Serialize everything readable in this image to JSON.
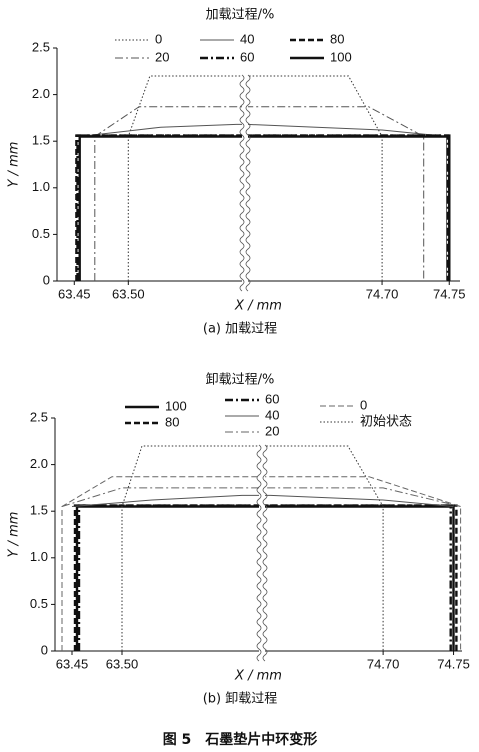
{
  "chart_data": [
    {
      "type": "line",
      "legend_title": "加载过程/%",
      "x_label": "X / mm",
      "y_label": "Y / mm",
      "caption": "(a)  加载过程",
      "xlim": [
        63.434,
        74.758
      ],
      "xbreak": [
        63.608,
        74.598
      ],
      "ylim": [
        0,
        2.5
      ],
      "xticks": [
        63.45,
        {
          "value": 63.5,
          "label": "63.50"
        },
        {
          "value": 74.7,
          "label": "74.70"
        },
        74.75
      ],
      "yticks": [
        0,
        0.5,
        {
          "value": 1,
          "label": "1.0"
        },
        1.5,
        {
          "value": 2,
          "label": "2.0"
        },
        2.5
      ],
      "series": [
        {
          "name": "0",
          "color": "#333333",
          "dash": "dotted",
          "weight": "normal",
          "x": [
            63.5,
            63.5,
            63.52,
            74.675,
            74.7,
            74.7
          ],
          "values": [
            0,
            1.55,
            2.2,
            2.2,
            1.55,
            0
          ]
        },
        {
          "name": "20",
          "color": "#555555",
          "dash": "dashdot",
          "weight": "normal",
          "x": [
            63.469,
            63.469,
            63.51,
            74.69,
            74.731,
            74.731
          ],
          "values": [
            0,
            1.55,
            1.87,
            1.87,
            1.55,
            0
          ]
        },
        {
          "name": "40",
          "color": "#555555",
          "dash": "solid",
          "weight": "normal",
          "x": [
            63.455,
            63.455,
            63.53,
            63.6,
            74.6,
            74.7,
            74.748,
            74.748
          ],
          "values": [
            0,
            1.55,
            1.65,
            1.68,
            1.68,
            1.62,
            1.55,
            0
          ]
        },
        {
          "name": "60",
          "color": "#111111",
          "dash": "dashdot",
          "weight": "bold",
          "x": [
            63.453,
            63.453,
            74.749,
            74.749
          ],
          "values": [
            0,
            1.56,
            1.56,
            0
          ]
        },
        {
          "name": "80",
          "color": "#111111",
          "dash": "dashed",
          "weight": "bold",
          "x": [
            63.452,
            63.452,
            74.75,
            74.75
          ],
          "values": [
            0,
            1.56,
            1.56,
            0
          ]
        },
        {
          "name": "100",
          "color": "#111111",
          "dash": "solid",
          "weight": "bold",
          "x": [
            63.455,
            63.455,
            74.75,
            74.75
          ],
          "values": [
            0,
            1.55,
            1.55,
            0
          ]
        }
      ]
    },
    {
      "type": "line",
      "legend_title": "卸载过程/%",
      "x_label": "X / mm",
      "y_label": "Y / mm",
      "caption": "(b)  卸载过程",
      "xlim": [
        63.433,
        74.756
      ],
      "xbreak": [
        63.64,
        74.614
      ],
      "ylim": [
        0,
        2.5
      ],
      "xticks": [
        63.45,
        {
          "value": 63.5,
          "label": "63.50"
        },
        {
          "value": 74.7,
          "label": "74.70"
        },
        74.75
      ],
      "yticks": [
        0,
        0.5,
        {
          "value": 1,
          "label": "1.0"
        },
        1.5,
        {
          "value": 2,
          "label": "2.0"
        },
        2.5
      ],
      "series": [
        {
          "name": "100",
          "color": "#111111",
          "dash": "solid",
          "weight": "bold",
          "x": [
            63.455,
            63.455,
            74.75,
            74.75
          ],
          "values": [
            0,
            1.55,
            1.55,
            0
          ]
        },
        {
          "name": "80",
          "color": "#111111",
          "dash": "dashed",
          "weight": "bold",
          "x": [
            63.453,
            63.453,
            74.752,
            74.752
          ],
          "values": [
            0,
            1.56,
            1.56,
            0
          ]
        },
        {
          "name": "60",
          "color": "#111111",
          "dash": "dashdot",
          "weight": "bold",
          "x": [
            63.457,
            63.457,
            74.748,
            74.748
          ],
          "values": [
            0,
            1.56,
            1.56,
            0
          ]
        },
        {
          "name": "40",
          "color": "#555555",
          "dash": "solid",
          "weight": "normal",
          "x": [
            63.45,
            63.53,
            63.62,
            74.62,
            74.7,
            74.75
          ],
          "values": [
            1.55,
            1.62,
            1.67,
            1.67,
            1.62,
            1.55
          ]
        },
        {
          "name": "20",
          "color": "#666666",
          "dash": "dashdot",
          "weight": "normal",
          "x": [
            63.44,
            63.5,
            74.7,
            74.755
          ],
          "values": [
            1.55,
            1.75,
            1.75,
            1.55
          ]
        },
        {
          "name": "0",
          "color": "#666666",
          "dash": "dashed",
          "weight": "normal",
          "x": [
            63.44,
            63.44,
            63.49,
            74.69,
            74.755,
            74.755
          ],
          "values": [
            0,
            1.55,
            1.87,
            1.87,
            1.55,
            0
          ]
        },
        {
          "name": "初始状态",
          "color": "#333333",
          "dash": "dotted",
          "weight": "normal",
          "x": [
            63.5,
            63.5,
            63.52,
            74.675,
            74.7,
            74.7
          ],
          "values": [
            0,
            1.55,
            2.2,
            2.2,
            1.55,
            0
          ]
        }
      ]
    }
  ],
  "figure_caption": "图 5　石墨垫片中环变形"
}
